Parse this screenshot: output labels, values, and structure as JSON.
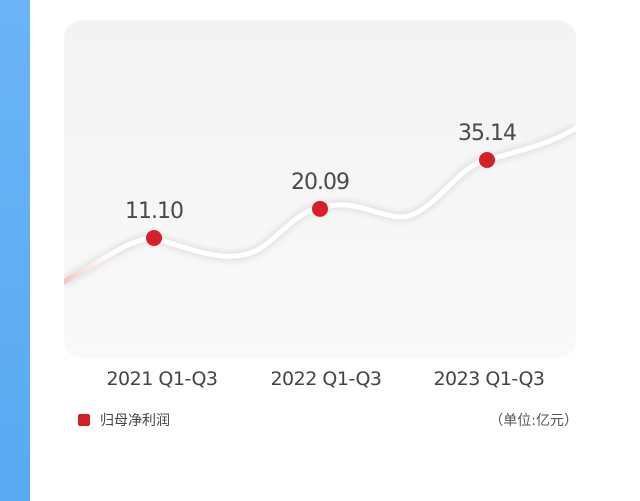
{
  "chart_data": {
    "type": "line",
    "categories": [
      "2021 Q1-Q3",
      "2022 Q1-Q3",
      "2023 Q1-Q3"
    ],
    "series": [
      {
        "name": "归母净利润",
        "values": [
          11.1,
          20.09,
          35.14
        ],
        "labels": [
          "11.10",
          "20.09",
          "35.14"
        ]
      }
    ],
    "unit_note": "（单位:亿元）",
    "grid": false,
    "legend_position": "bottom-left"
  },
  "colors": {
    "accent": "#d61f2b",
    "side_bar": "#5aa9f1",
    "line": "#ffffff",
    "text": "#444444"
  }
}
